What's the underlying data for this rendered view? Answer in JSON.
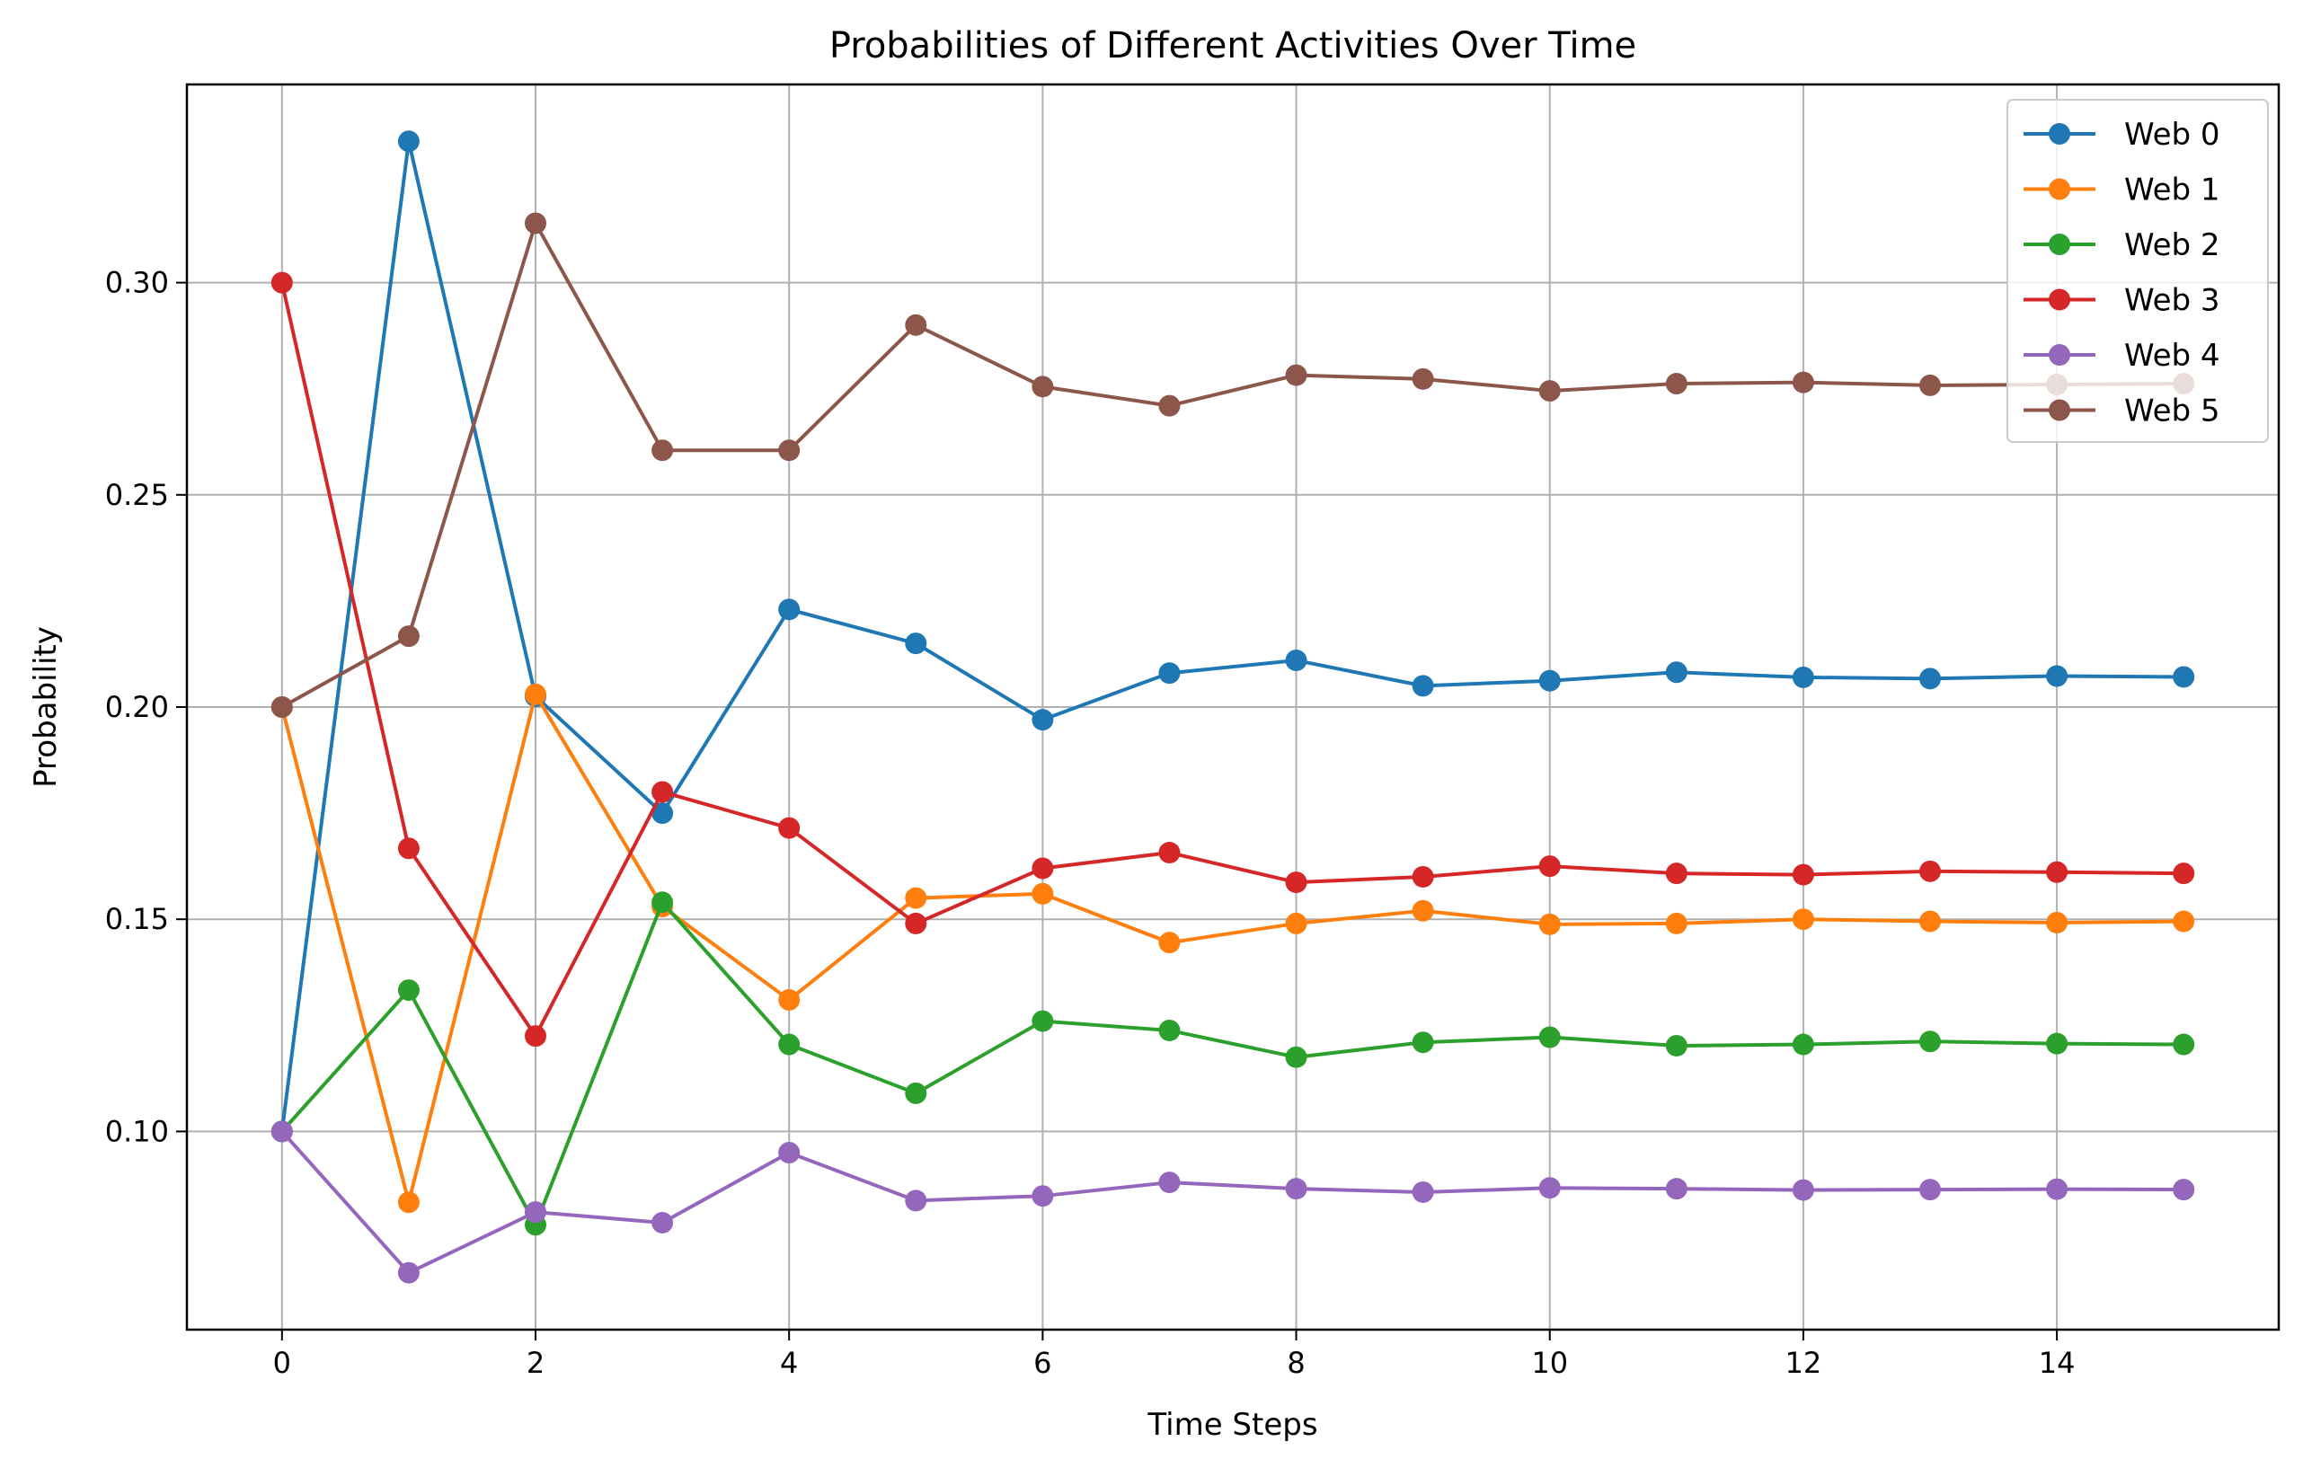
{
  "chart_data": {
    "type": "line",
    "title": "Probabilities of Different Activities Over Time",
    "xlabel": "Time Steps",
    "ylabel": "Probability",
    "x": [
      0,
      1,
      2,
      3,
      4,
      5,
      6,
      7,
      8,
      9,
      10,
      11,
      12,
      13,
      14,
      15
    ],
    "xlim": [
      -0.75,
      15.75
    ],
    "ylim": [
      0.0533,
      0.3467
    ],
    "xticks": [
      0,
      2,
      4,
      6,
      8,
      10,
      12,
      14
    ],
    "xtick_labels": [
      "0",
      "2",
      "4",
      "6",
      "8",
      "10",
      "12",
      "14"
    ],
    "yticks": [
      0.1,
      0.15,
      0.2,
      0.25,
      0.3
    ],
    "ytick_labels": [
      "0.10",
      "0.15",
      "0.20",
      "0.25",
      "0.30"
    ],
    "grid": true,
    "legend_position": "top-right",
    "series": [
      {
        "name": "Web 0",
        "color": "#1f77b4",
        "values": [
          0.1,
          0.3333,
          0.2025,
          0.175,
          0.223,
          0.215,
          0.197,
          0.208,
          0.211,
          0.205,
          0.2062,
          0.2082,
          0.207,
          0.2067,
          0.2073,
          0.2071
        ]
      },
      {
        "name": "Web 1",
        "color": "#ff7f0e",
        "values": [
          0.2,
          0.0833,
          0.203,
          0.153,
          0.131,
          0.155,
          0.156,
          0.1445,
          0.149,
          0.152,
          0.1488,
          0.149,
          0.15,
          0.1495,
          0.1492,
          0.1495
        ]
      },
      {
        "name": "Web 2",
        "color": "#2ca02c",
        "values": [
          0.1,
          0.1333,
          0.078,
          0.154,
          0.1205,
          0.109,
          0.126,
          0.1238,
          0.1175,
          0.121,
          0.1222,
          0.1202,
          0.1205,
          0.1212,
          0.1207,
          0.1205
        ]
      },
      {
        "name": "Web 3",
        "color": "#d62728",
        "values": [
          0.3,
          0.1667,
          0.1225,
          0.18,
          0.1715,
          0.149,
          0.162,
          0.1657,
          0.1587,
          0.16,
          0.1625,
          0.1608,
          0.1605,
          0.1613,
          0.1611,
          0.1608
        ]
      },
      {
        "name": "Web 4",
        "color": "#9467bd",
        "values": [
          0.1,
          0.0667,
          0.081,
          0.0785,
          0.095,
          0.0837,
          0.0848,
          0.088,
          0.0865,
          0.0857,
          0.0867,
          0.0865,
          0.0862,
          0.0863,
          0.0864,
          0.0863
        ]
      },
      {
        "name": "Web 5",
        "color": "#8c564b",
        "values": [
          0.2,
          0.2167,
          0.314,
          0.2605,
          0.2605,
          0.29,
          0.2755,
          0.271,
          0.2782,
          0.2773,
          0.2745,
          0.2762,
          0.2765,
          0.2758,
          0.276,
          0.2762
        ]
      }
    ]
  }
}
